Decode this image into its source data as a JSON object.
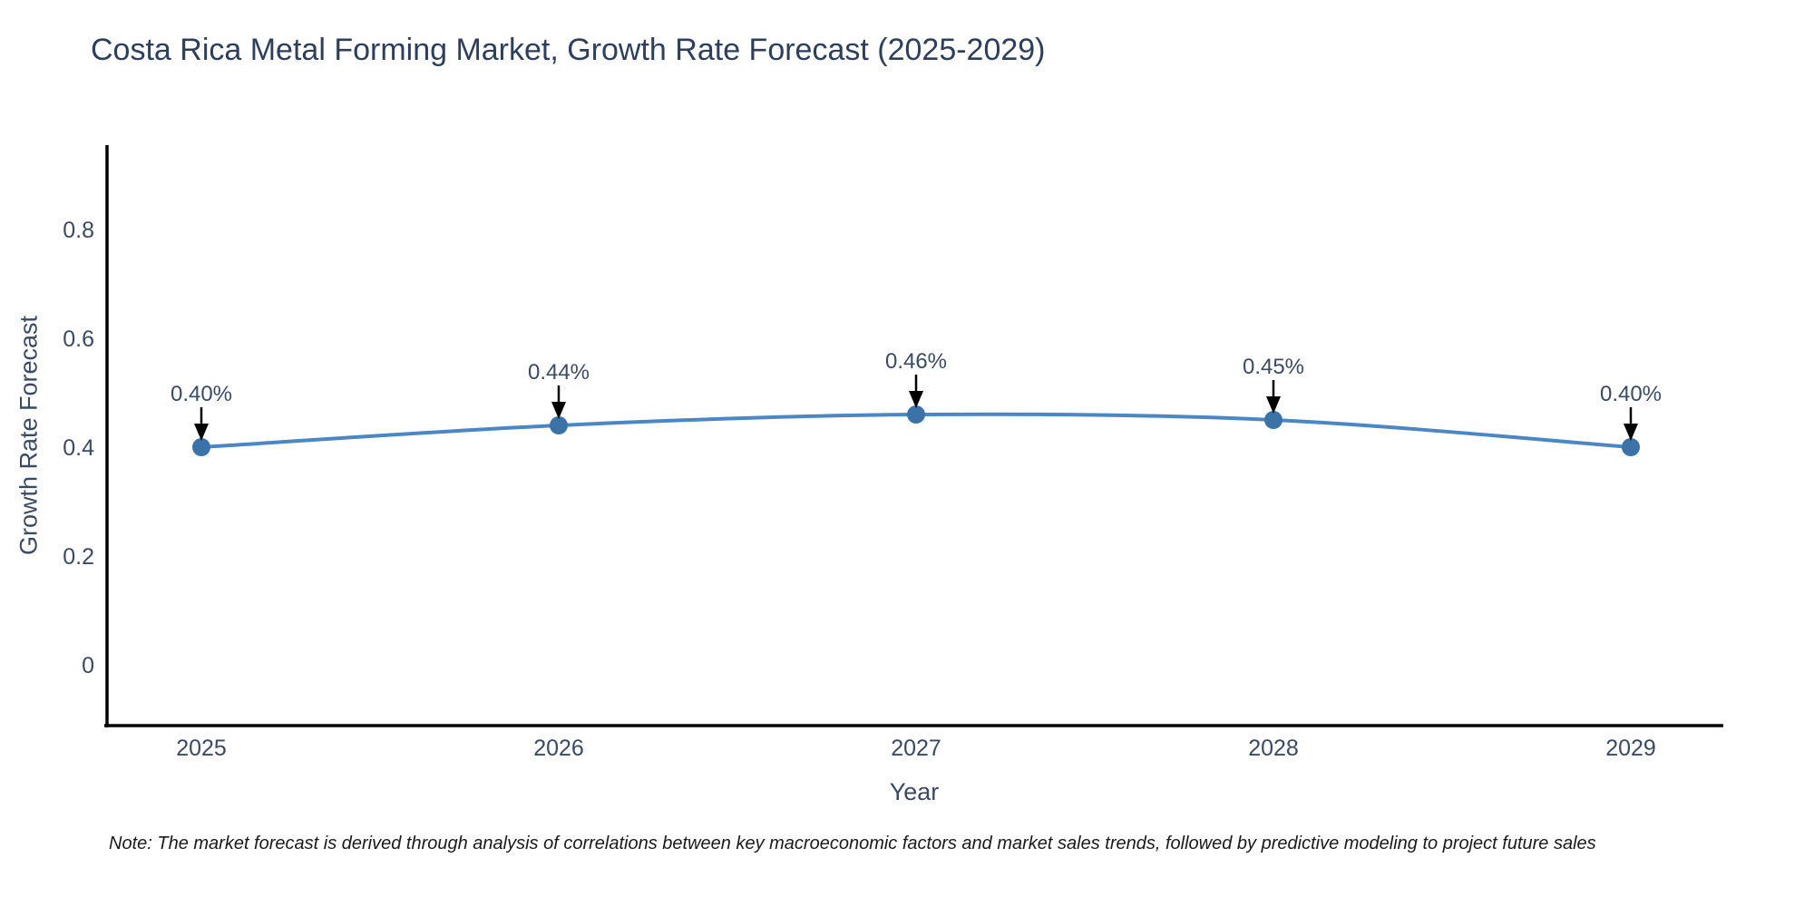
{
  "chart": {
    "title": "Costa Rica Metal Forming Market, Growth Rate Forecast (2025-2029)",
    "xlabel": "Year",
    "ylabel": "Growth Rate Forecast",
    "note": "Note: The market forecast is derived through analysis of correlations between key macroeconomic factors and market sales trends, followed by predictive modeling to project future sales"
  },
  "chart_data": {
    "type": "line",
    "title": "Costa Rica Metal Forming Market, Growth Rate Forecast (2025-2029)",
    "xlabel": "Year",
    "ylabel": "Growth Rate Forecast",
    "categories": [
      "2025",
      "2026",
      "2027",
      "2028",
      "2029"
    ],
    "values": [
      0.4,
      0.44,
      0.46,
      0.45,
      0.4
    ],
    "point_labels": [
      "0.40%",
      "0.44%",
      "0.46%",
      "0.45%",
      "0.40%"
    ],
    "y_ticks": [
      0,
      0.2,
      0.4,
      0.6,
      0.8
    ],
    "y_tick_labels": [
      "0",
      "0.2",
      "0.4",
      "0.6",
      "0.8"
    ],
    "ylim": [
      -0.112,
      0.955
    ],
    "grid": false,
    "legend_position": "none",
    "line_shape": "spline",
    "colors": {
      "line": "#4a87c4",
      "marker": "#3b73a9",
      "axis": "#000000",
      "tick_label": "#3b4a63",
      "annotation_text": "#3b4a63",
      "annotation_arrow": "#000000",
      "title": "#2e3f5c",
      "background": "#ffffff"
    }
  }
}
